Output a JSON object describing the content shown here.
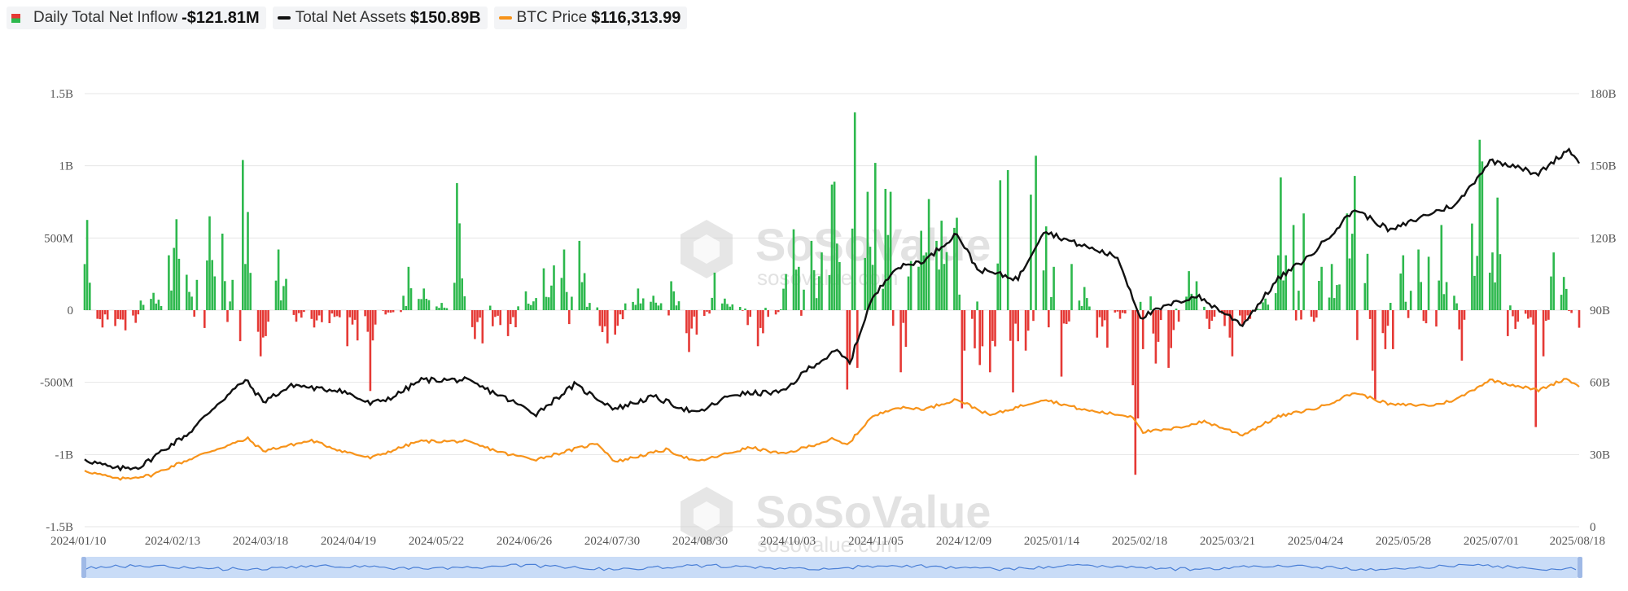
{
  "legend": {
    "inflow_label": "Daily Total Net Inflow",
    "inflow_value": "-$121.81M",
    "assets_label": "Total Net Assets",
    "assets_value": "$150.89B",
    "btc_label": "BTC Price",
    "btc_value": "$116,313.99"
  },
  "colors": {
    "positive_bar": "#2db84d",
    "negative_bar": "#e53935",
    "net_assets_line": "#111111",
    "btc_line": "#f7931a",
    "grid": "#e6e6e6",
    "axis_text": "#555555",
    "scroller_fill": "#c9dcf7",
    "scroller_line": "#4a7fd6"
  },
  "watermark": {
    "brand": "SoSoValue",
    "url": "sosovalue.com"
  },
  "chart_data": {
    "type": "bar+line",
    "x_start": "2024/01/10",
    "x_end": "2025/08/18",
    "x_tick_labels": [
      "2024/01/10",
      "2024/02/13",
      "2024/03/18",
      "2024/04/19",
      "2024/05/22",
      "2024/06/26",
      "2024/07/30",
      "2024/08/30",
      "2024/10/03",
      "2024/11/05",
      "2024/12/09",
      "2025/01/14",
      "2025/02/18",
      "2025/03/21",
      "2025/04/24",
      "2025/05/28",
      "2025/07/01",
      "2025/08/18"
    ],
    "y_left": {
      "tick_labels": [
        "1.5B",
        "1B",
        "500M",
        "0",
        "-500M",
        "-1B",
        "-1.5B"
      ],
      "tick_values": [
        1500,
        1000,
        500,
        0,
        -500,
        -1000,
        -1500
      ],
      "range": [
        -1500,
        1500
      ],
      "unit": "M USD"
    },
    "y_right": {
      "tick_labels": [
        "180B",
        "150B",
        "120B",
        "90B",
        "60B",
        "30B",
        "0"
      ],
      "tick_values": [
        180,
        150,
        120,
        90,
        60,
        30,
        0
      ],
      "range": [
        0,
        180
      ],
      "unit": "B USD"
    },
    "grid": true,
    "legend_position": "top-left",
    "daily_net_inflow_anchors": [
      {
        "date": "2024-01-11",
        "value": 625
      },
      {
        "date": "2024-01-12",
        "value": 190
      },
      {
        "date": "2024-01-17",
        "value": -120
      },
      {
        "date": "2024-01-22",
        "value": -110
      },
      {
        "date": "2024-01-26",
        "value": -140
      },
      {
        "date": "2024-02-06",
        "value": 120
      },
      {
        "date": "2024-02-12",
        "value": 380
      },
      {
        "date": "2024-02-15",
        "value": 630
      },
      {
        "date": "2024-02-23",
        "value": 210
      },
      {
        "date": "2024-02-28",
        "value": 650
      },
      {
        "date": "2024-03-04",
        "value": 530
      },
      {
        "date": "2024-03-08",
        "value": 210
      },
      {
        "date": "2024-03-12",
        "value": 1040
      },
      {
        "date": "2024-03-14",
        "value": 680
      },
      {
        "date": "2024-03-18",
        "value": -150
      },
      {
        "date": "2024-03-19",
        "value": -320
      },
      {
        "date": "2024-03-21",
        "value": -180
      },
      {
        "date": "2024-03-26",
        "value": 420
      },
      {
        "date": "2024-04-02",
        "value": -80
      },
      {
        "date": "2024-04-09",
        "value": -120
      },
      {
        "date": "2024-04-15",
        "value": -90
      },
      {
        "date": "2024-04-22",
        "value": -250
      },
      {
        "date": "2024-04-26",
        "value": -210
      },
      {
        "date": "2024-04-30",
        "value": -150
      },
      {
        "date": "2024-05-01",
        "value": -560
      },
      {
        "date": "2024-05-03",
        "value": -100
      },
      {
        "date": "2024-05-07",
        "value": -30
      },
      {
        "date": "2024-05-14",
        "value": 100
      },
      {
        "date": "2024-05-16",
        "value": 300
      },
      {
        "date": "2024-05-22",
        "value": 150
      },
      {
        "date": "2024-05-29",
        "value": 50
      },
      {
        "date": "2024-06-04",
        "value": 880
      },
      {
        "date": "2024-06-06",
        "value": 220
      },
      {
        "date": "2024-06-11",
        "value": -200
      },
      {
        "date": "2024-06-14",
        "value": -230
      },
      {
        "date": "2024-06-24",
        "value": -180
      },
      {
        "date": "2024-07-01",
        "value": 130
      },
      {
        "date": "2024-07-08",
        "value": 290
      },
      {
        "date": "2024-07-12",
        "value": 310
      },
      {
        "date": "2024-07-16",
        "value": 420
      },
      {
        "date": "2024-07-22",
        "value": 480
      },
      {
        "date": "2024-07-26",
        "value": 50
      },
      {
        "date": "2024-08-02",
        "value": -230
      },
      {
        "date": "2024-08-05",
        "value": -170
      },
      {
        "date": "2024-08-14",
        "value": 150
      },
      {
        "date": "2024-08-20",
        "value": 100
      },
      {
        "date": "2024-08-27",
        "value": 200
      },
      {
        "date": "2024-09-03",
        "value": -290
      },
      {
        "date": "2024-09-06",
        "value": -170
      },
      {
        "date": "2024-09-09",
        "value": -40
      },
      {
        "date": "2024-09-13",
        "value": 260
      },
      {
        "date": "2024-09-17",
        "value": 80
      },
      {
        "date": "2024-09-20",
        "value": 40
      },
      {
        "date": "2024-09-30",
        "value": -250
      },
      {
        "date": "2024-10-02",
        "value": -160
      },
      {
        "date": "2024-10-07",
        "value": -30
      },
      {
        "date": "2024-10-11",
        "value": 250
      },
      {
        "date": "2024-10-14",
        "value": 560
      },
      {
        "date": "2024-10-16",
        "value": 300
      },
      {
        "date": "2024-10-21",
        "value": 480
      },
      {
        "date": "2024-10-25",
        "value": 400
      },
      {
        "date": "2024-10-29",
        "value": 870
      },
      {
        "date": "2024-10-30",
        "value": 890
      },
      {
        "date": "2024-11-04",
        "value": -550
      },
      {
        "date": "2024-11-07",
        "value": 1370
      },
      {
        "date": "2024-11-08",
        "value": -400
      },
      {
        "date": "2024-11-12",
        "value": 820
      },
      {
        "date": "2024-11-15",
        "value": 1020
      },
      {
        "date": "2024-11-19",
        "value": 840
      },
      {
        "date": "2024-11-21",
        "value": 820
      },
      {
        "date": "2024-11-25",
        "value": -430
      },
      {
        "date": "2024-11-29",
        "value": 340
      },
      {
        "date": "2024-12-03",
        "value": 550
      },
      {
        "date": "2024-12-06",
        "value": 770
      },
      {
        "date": "2024-12-09",
        "value": 480
      },
      {
        "date": "2024-12-11",
        "value": 620
      },
      {
        "date": "2024-12-16",
        "value": 570
      },
      {
        "date": "2024-12-17",
        "value": 640
      },
      {
        "date": "2024-12-19",
        "value": -680
      },
      {
        "date": "2024-12-20",
        "value": -280
      },
      {
        "date": "2024-12-26",
        "value": -380
      },
      {
        "date": "2024-12-30",
        "value": -430
      },
      {
        "date": "2025-01-03",
        "value": 900
      },
      {
        "date": "2025-01-06",
        "value": 970
      },
      {
        "date": "2025-01-08",
        "value": -570
      },
      {
        "date": "2025-01-13",
        "value": -280
      },
      {
        "date": "2025-01-15",
        "value": 800
      },
      {
        "date": "2025-01-17",
        "value": 1070
      },
      {
        "date": "2025-01-21",
        "value": 580
      },
      {
        "date": "2025-01-24",
        "value": 300
      },
      {
        "date": "2025-01-27",
        "value": -460
      },
      {
        "date": "2025-01-31",
        "value": 320
      },
      {
        "date": "2025-02-05",
        "value": 160
      },
      {
        "date": "2025-02-10",
        "value": -190
      },
      {
        "date": "2025-02-14",
        "value": -260
      },
      {
        "date": "2025-02-19",
        "value": -60
      },
      {
        "date": "2025-02-24",
        "value": -520
      },
      {
        "date": "2025-02-25",
        "value": -1140
      },
      {
        "date": "2025-02-26",
        "value": -750
      },
      {
        "date": "2025-02-28",
        "value": -270
      },
      {
        "date": "2025-03-05",
        "value": -370
      },
      {
        "date": "2025-03-10",
        "value": -400
      },
      {
        "date": "2025-03-14",
        "value": -80
      },
      {
        "date": "2025-03-18",
        "value": 270
      },
      {
        "date": "2025-03-21",
        "value": 200
      },
      {
        "date": "2025-03-26",
        "value": -130
      },
      {
        "date": "2025-04-01",
        "value": -110
      },
      {
        "date": "2025-04-04",
        "value": -320
      },
      {
        "date": "2025-04-08",
        "value": -100
      },
      {
        "date": "2025-04-14",
        "value": 10
      },
      {
        "date": "2025-04-17",
        "value": 80
      },
      {
        "date": "2025-04-22",
        "value": 380
      },
      {
        "date": "2025-04-23",
        "value": 920
      },
      {
        "date": "2025-04-25",
        "value": 380
      },
      {
        "date": "2025-04-28",
        "value": 590
      },
      {
        "date": "2025-05-02",
        "value": 670
      },
      {
        "date": "2025-05-06",
        "value": -80
      },
      {
        "date": "2025-05-09",
        "value": 300
      },
      {
        "date": "2025-05-13",
        "value": 320
      },
      {
        "date": "2025-05-19",
        "value": 670
      },
      {
        "date": "2025-05-22",
        "value": 930
      },
      {
        "date": "2025-05-27",
        "value": 390
      },
      {
        "date": "2025-05-30",
        "value": -620
      },
      {
        "date": "2025-06-03",
        "value": -270
      },
      {
        "date": "2025-06-06",
        "value": -270
      },
      {
        "date": "2025-06-10",
        "value": 380
      },
      {
        "date": "2025-06-16",
        "value": 420
      },
      {
        "date": "2025-06-20",
        "value": 370
      },
      {
        "date": "2025-06-25",
        "value": 590
      },
      {
        "date": "2025-06-30",
        "value": 100
      },
      {
        "date": "2025-07-03",
        "value": -350
      },
      {
        "date": "2025-07-07",
        "value": 600
      },
      {
        "date": "2025-07-10",
        "value": 1180
      },
      {
        "date": "2025-07-11",
        "value": 1030
      },
      {
        "date": "2025-07-15",
        "value": 400
      },
      {
        "date": "2025-07-17",
        "value": 780
      },
      {
        "date": "2025-07-21",
        "value": -180
      },
      {
        "date": "2025-07-24",
        "value": -130
      },
      {
        "date": "2025-07-31",
        "value": -100
      },
      {
        "date": "2025-08-01",
        "value": -810
      },
      {
        "date": "2025-08-04",
        "value": -320
      },
      {
        "date": "2025-08-08",
        "value": 400
      },
      {
        "date": "2025-08-12",
        "value": 230
      },
      {
        "date": "2025-08-15",
        "value": -20
      },
      {
        "date": "2025-08-18",
        "value": -122
      }
    ],
    "total_net_assets": {
      "name": "Total Net Assets",
      "unit": "B USD",
      "points": [
        {
          "date": "2024-01-10",
          "value": 28
        },
        {
          "date": "2024-01-22",
          "value": 24
        },
        {
          "date": "2024-02-01",
          "value": 25
        },
        {
          "date": "2024-02-10",
          "value": 32
        },
        {
          "date": "2024-02-20",
          "value": 39
        },
        {
          "date": "2024-03-01",
          "value": 50
        },
        {
          "date": "2024-03-13",
          "value": 61
        },
        {
          "date": "2024-03-20",
          "value": 52
        },
        {
          "date": "2024-04-01",
          "value": 59
        },
        {
          "date": "2024-04-12",
          "value": 57
        },
        {
          "date": "2024-04-19",
          "value": 57
        },
        {
          "date": "2024-05-01",
          "value": 51
        },
        {
          "date": "2024-05-10",
          "value": 54
        },
        {
          "date": "2024-05-21",
          "value": 61
        },
        {
          "date": "2024-06-07",
          "value": 61
        },
        {
          "date": "2024-06-20",
          "value": 55
        },
        {
          "date": "2024-07-05",
          "value": 47
        },
        {
          "date": "2024-07-20",
          "value": 59
        },
        {
          "date": "2024-08-05",
          "value": 49
        },
        {
          "date": "2024-08-20",
          "value": 54
        },
        {
          "date": "2024-09-06",
          "value": 47
        },
        {
          "date": "2024-09-20",
          "value": 55
        },
        {
          "date": "2024-10-10",
          "value": 56
        },
        {
          "date": "2024-10-20",
          "value": 66
        },
        {
          "date": "2024-10-31",
          "value": 73
        },
        {
          "date": "2024-11-05",
          "value": 68
        },
        {
          "date": "2024-11-13",
          "value": 93
        },
        {
          "date": "2024-11-22",
          "value": 107
        },
        {
          "date": "2024-12-05",
          "value": 111
        },
        {
          "date": "2024-12-17",
          "value": 122
        },
        {
          "date": "2024-12-25",
          "value": 107
        },
        {
          "date": "2025-01-10",
          "value": 103
        },
        {
          "date": "2025-01-20",
          "value": 123
        },
        {
          "date": "2025-02-01",
          "value": 118
        },
        {
          "date": "2025-02-18",
          "value": 112
        },
        {
          "date": "2025-02-27",
          "value": 87
        },
        {
          "date": "2025-03-10",
          "value": 92
        },
        {
          "date": "2025-03-21",
          "value": 96
        },
        {
          "date": "2025-04-08",
          "value": 84
        },
        {
          "date": "2025-04-22",
          "value": 103
        },
        {
          "date": "2025-05-05",
          "value": 113
        },
        {
          "date": "2025-05-22",
          "value": 132
        },
        {
          "date": "2025-06-05",
          "value": 123
        },
        {
          "date": "2025-06-20",
          "value": 130
        },
        {
          "date": "2025-07-01",
          "value": 134
        },
        {
          "date": "2025-07-14",
          "value": 152
        },
        {
          "date": "2025-07-25",
          "value": 150
        },
        {
          "date": "2025-08-01",
          "value": 146
        },
        {
          "date": "2025-08-14",
          "value": 157
        },
        {
          "date": "2025-08-18",
          "value": 151
        }
      ]
    },
    "btc_price": {
      "name": "BTC Price",
      "unit": "USD",
      "points": [
        {
          "date": "2024-01-10",
          "value": 46600
        },
        {
          "date": "2024-01-23",
          "value": 39500
        },
        {
          "date": "2024-02-05",
          "value": 42700
        },
        {
          "date": "2024-02-15",
          "value": 51800
        },
        {
          "date": "2024-02-28",
          "value": 62500
        },
        {
          "date": "2024-03-14",
          "value": 73100
        },
        {
          "date": "2024-03-20",
          "value": 63000
        },
        {
          "date": "2024-04-08",
          "value": 71600
        },
        {
          "date": "2024-04-19",
          "value": 63500
        },
        {
          "date": "2024-05-01",
          "value": 57000
        },
        {
          "date": "2024-05-20",
          "value": 71000
        },
        {
          "date": "2024-06-07",
          "value": 71000
        },
        {
          "date": "2024-06-24",
          "value": 60200
        },
        {
          "date": "2024-07-05",
          "value": 56000
        },
        {
          "date": "2024-07-29",
          "value": 69500
        },
        {
          "date": "2024-08-05",
          "value": 53900
        },
        {
          "date": "2024-08-25",
          "value": 64000
        },
        {
          "date": "2024-09-06",
          "value": 53900
        },
        {
          "date": "2024-09-27",
          "value": 65900
        },
        {
          "date": "2024-10-10",
          "value": 60300
        },
        {
          "date": "2024-10-29",
          "value": 72700
        },
        {
          "date": "2024-11-04",
          "value": 67800
        },
        {
          "date": "2024-11-13",
          "value": 90000
        },
        {
          "date": "2024-11-22",
          "value": 98900
        },
        {
          "date": "2024-12-05",
          "value": 98000
        },
        {
          "date": "2024-12-17",
          "value": 106000
        },
        {
          "date": "2024-12-30",
          "value": 92500
        },
        {
          "date": "2025-01-20",
          "value": 106000
        },
        {
          "date": "2025-02-05",
          "value": 97000
        },
        {
          "date": "2025-02-24",
          "value": 91500
        },
        {
          "date": "2025-02-28",
          "value": 79000
        },
        {
          "date": "2025-03-10",
          "value": 80500
        },
        {
          "date": "2025-03-24",
          "value": 87500
        },
        {
          "date": "2025-04-08",
          "value": 76300
        },
        {
          "date": "2025-04-22",
          "value": 91500
        },
        {
          "date": "2025-05-08",
          "value": 99000
        },
        {
          "date": "2025-05-22",
          "value": 111500
        },
        {
          "date": "2025-06-05",
          "value": 101500
        },
        {
          "date": "2025-06-22",
          "value": 100900
        },
        {
          "date": "2025-07-01",
          "value": 106000
        },
        {
          "date": "2025-07-14",
          "value": 122000
        },
        {
          "date": "2025-08-02",
          "value": 113400
        },
        {
          "date": "2025-08-13",
          "value": 123300
        },
        {
          "date": "2025-08-18",
          "value": 116313.99
        }
      ]
    }
  }
}
